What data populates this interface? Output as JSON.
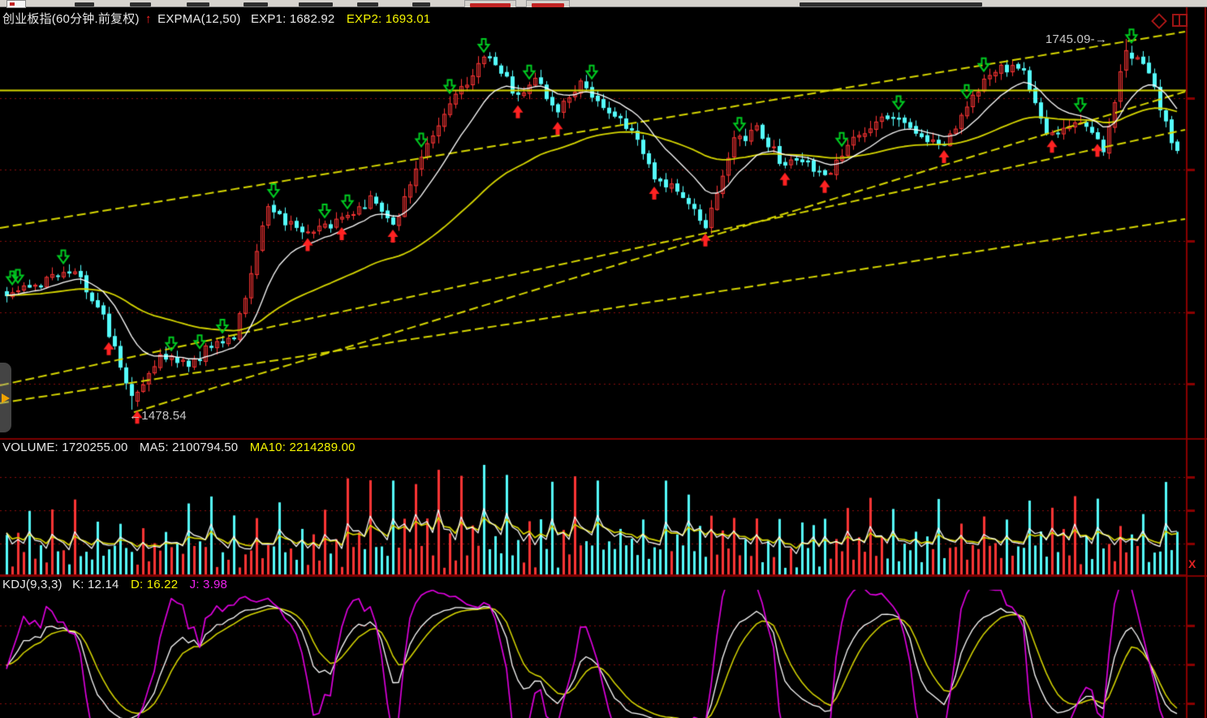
{
  "app": {
    "menubar": {
      "background": "#d6d3ce",
      "note": "menu text cropped by screenshot edge"
    }
  },
  "main_chart_header": {
    "instrument": "创业板指(60分钟.前复权)",
    "signal_arrow": "↑",
    "indicator": "EXPMA(12,50)",
    "exp1_label": "EXP1: 1682.92",
    "exp2_label": "EXP2: 1693.01"
  },
  "annotations": {
    "high_label": "1745.09-→",
    "low_label": "←1478.54",
    "volume_axis_unit": "X"
  },
  "volume_header": {
    "volume_label": "VOLUME: 1720255.00",
    "ma5_label": "MA5: 2100794.50",
    "ma10_label": "MA10: 2214289.00"
  },
  "kdj_header": {
    "name_label": "KDJ(9,3,3)",
    "k_label": "K: 12.14",
    "d_label": "D: 16.22",
    "j_label": "J: 3.98"
  },
  "colors": {
    "background": "#000000",
    "candle_up": "#fd3434",
    "candle_down": "#55fcfc",
    "exp1": "#ffffff",
    "exp2": "#d8d800",
    "trendline": "#d8d800",
    "grid": "#8a0d0d",
    "axis": "#8b0000",
    "separator": "#7e0000",
    "marker_buy": "#ff2222",
    "marker_sell": "#00cc22",
    "vol_ma5": "#ffffff",
    "vol_ma10": "#d8d800",
    "kdj_k": "#ffffff",
    "kdj_d": "#d8d800",
    "kdj_j": "#e400e4",
    "annotation_text": "#c8c8c8"
  },
  "chart_data": [
    {
      "type": "candlestick",
      "title": "创业板指",
      "period": "60分钟",
      "adjustment": "前复权",
      "indicator": "EXPMA(12,50)",
      "exp1_value": 1682.92,
      "exp2_value": 1693.01,
      "annotated_high": 1745.09,
      "annotated_low": 1478.54,
      "n_bars": 207,
      "grid_prices": [
        1702.5,
        1651.1,
        1599.8,
        1548.4,
        1497.1
      ],
      "horizontal_line_price": 1708.1,
      "price_anchors": [
        [
          0,
          1560
        ],
        [
          7,
          1572
        ],
        [
          12,
          1580
        ],
        [
          17,
          1546
        ],
        [
          22,
          1484
        ],
        [
          27,
          1519
        ],
        [
          32,
          1510
        ],
        [
          36,
          1525
        ],
        [
          40,
          1531
        ],
        [
          46,
          1624
        ],
        [
          52,
          1604
        ],
        [
          59,
          1616
        ],
        [
          64,
          1630
        ],
        [
          68,
          1610
        ],
        [
          73,
          1662
        ],
        [
          79,
          1703
        ],
        [
          84,
          1732
        ],
        [
          87,
          1723
        ],
        [
          90,
          1703
        ],
        [
          93,
          1717
        ],
        [
          97,
          1694
        ],
        [
          101,
          1712
        ],
        [
          104,
          1703
        ],
        [
          110,
          1680
        ],
        [
          114,
          1648
        ],
        [
          118,
          1636
        ],
        [
          123,
          1610
        ],
        [
          128,
          1671
        ],
        [
          132,
          1680
        ],
        [
          137,
          1654
        ],
        [
          140,
          1660
        ],
        [
          144,
          1645
        ],
        [
          148,
          1671
        ],
        [
          153,
          1685
        ],
        [
          157,
          1691
        ],
        [
          162,
          1671
        ],
        [
          165,
          1668
        ],
        [
          170,
          1706
        ],
        [
          175,
          1726
        ],
        [
          179,
          1720
        ],
        [
          183,
          1677
        ],
        [
          189,
          1686
        ],
        [
          193,
          1665
        ],
        [
          197,
          1738
        ],
        [
          201,
          1720
        ],
        [
          204,
          1686
        ],
        [
          206,
          1662
        ]
      ],
      "buy_marker_indices": [
        18,
        23,
        53,
        59,
        68,
        90,
        97,
        114,
        123,
        137,
        144,
        165,
        184,
        192
      ],
      "sell_marker_indices": [
        1,
        2,
        10,
        29,
        34,
        38,
        47,
        56,
        60,
        73,
        78,
        84,
        92,
        103,
        129,
        147,
        157,
        169,
        172,
        189,
        198
      ],
      "trendlines": [
        {
          "x1f": 0.0,
          "p1": 1609.2,
          "x2f": 1.0,
          "p2": 1750.3
        },
        {
          "x1f": 0.0,
          "p1": 1496.0,
          "x2f": 1.0,
          "p2": 1679.8
        },
        {
          "x1f": 0.113,
          "p1": 1476.7,
          "x2f": 1.0,
          "p2": 1707.2
        },
        {
          "x1f": 0.0,
          "p1": 1483.2,
          "x2f": 1.0,
          "p2": 1615.6
        }
      ]
    },
    {
      "type": "bar",
      "name": "VOLUME",
      "volume_value": 1720255.0,
      "ma5_value": 2100794.5,
      "ma10_value": 2214289.0,
      "n_bars": 207,
      "seed": 7,
      "spike_period": 4,
      "max_spike_index": 84,
      "unit_label": "X"
    },
    {
      "type": "line",
      "name": "KDJ",
      "params": [
        9,
        3,
        3
      ],
      "k_value": 12.14,
      "d_value": 16.22,
      "j_value": 3.98,
      "grid_values": [
        80,
        50,
        20
      ],
      "value_range": [
        0,
        100
      ]
    }
  ]
}
